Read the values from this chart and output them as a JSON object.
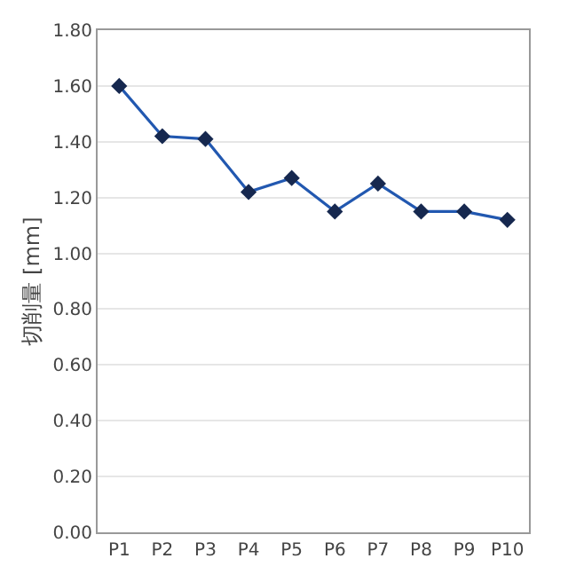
{
  "chart_data": {
    "type": "line",
    "ylabel": "切削量 [mm]",
    "categories": [
      "P1",
      "P2",
      "P3",
      "P4",
      "P5",
      "P6",
      "P7",
      "P8",
      "P9",
      "P10"
    ],
    "series": [
      {
        "color": "#2258b0",
        "values": [
          1.6,
          1.42,
          1.41,
          1.22,
          1.27,
          1.15,
          1.25,
          1.15,
          1.15,
          1.12
        ]
      }
    ],
    "ylim": [
      0,
      1.8
    ],
    "yticks": [
      {
        "value": 0,
        "label": "0.00"
      },
      {
        "value": 0.2,
        "label": "0.20"
      },
      {
        "value": 0.4,
        "label": "0.40"
      },
      {
        "value": 0.6,
        "label": "0.60"
      },
      {
        "value": 0.8,
        "label": "0.80"
      },
      {
        "value": 1.0,
        "label": "1.00"
      },
      {
        "value": 1.2,
        "label": "1.20"
      },
      {
        "value": 1.4,
        "label": "1.40"
      },
      {
        "value": 1.6,
        "label": "1.60"
      },
      {
        "value": 1.8,
        "label": "1.80"
      }
    ],
    "grid": "y",
    "marker": "diamond",
    "line_style": "solid"
  }
}
